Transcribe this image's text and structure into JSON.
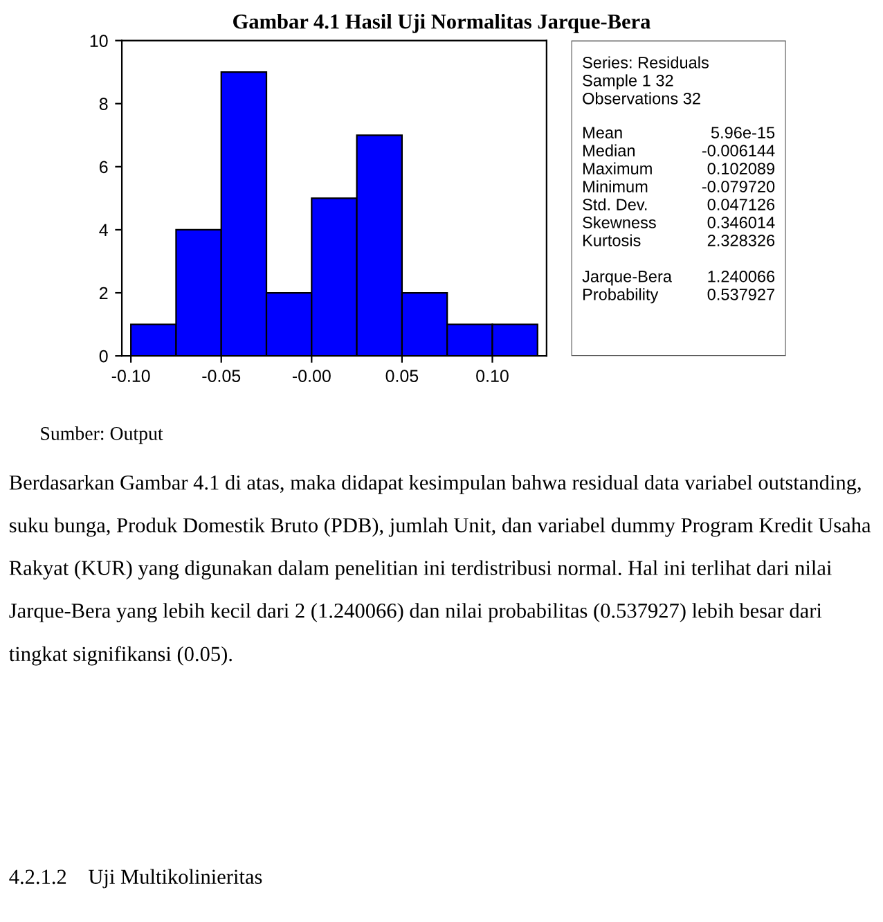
{
  "chart_data": [
    {
      "type": "histogram",
      "title": "Gambar 4.1 Hasil Uji Normalitas Jarque-Bera",
      "bins": [
        -0.1,
        -0.075,
        -0.05,
        -0.025,
        0.0,
        0.025,
        0.05,
        0.075,
        0.1,
        0.125
      ],
      "values": [
        1,
        4,
        9,
        2,
        5,
        7,
        2,
        1,
        1
      ],
      "color": "#0000ff",
      "xlim": [
        -0.105,
        0.13
      ],
      "xticks": [
        {
          "value": -0.1,
          "label": "-0.10"
        },
        {
          "value": -0.05,
          "label": "-0.05"
        },
        {
          "value": 0.0,
          "label": "-0.00"
        },
        {
          "value": 0.05,
          "label": "0.05"
        },
        {
          "value": 0.1,
          "label": "0.10"
        }
      ],
      "ylim": [
        0,
        10
      ],
      "yticks": [
        0,
        2,
        4,
        6,
        8,
        10
      ],
      "grid": false,
      "annotations": [
        "Sumber: Output",
        "Berdasarkan Gambar 4.1 di atas, maka didapat kesimpulan bahwa residual data variabel outstanding, suku bunga, Produk Domestik Bruto (PDB), jumlah Unit, dan variabel dummy Program Kredit Usaha Rakyat (KUR) yang digunakan dalam penelitian ini terdistribusi normal. Hal ini terlihat dari nilai Jarque-Bera yang lebih kecil dari 2 (1.240066) dan nilai probabilitas (0.537927) lebih besar dari tingkat signifikansi (0.05).",
        "4.2.1.2    Uji Multikolinieritas"
      ]
    },
    {
      "type": "other",
      "annotations": [
        "Series: Residuals",
        "Sample 1 32",
        "Observations 32"
      ],
      "categories": [
        "Mean",
        "Median",
        "Maximum",
        "Minimum",
        "Std. Dev.",
        "Skewness",
        "Kurtosis",
        null,
        "Jarque-Bera",
        "Probability"
      ],
      "value_labels": [
        "5.96e-15",
        "-0.006144",
        "0.102089",
        "-0.079720",
        "0.047126",
        "0.346014",
        "2.328326",
        null,
        "1.240066",
        "0.537927"
      ]
    }
  ]
}
